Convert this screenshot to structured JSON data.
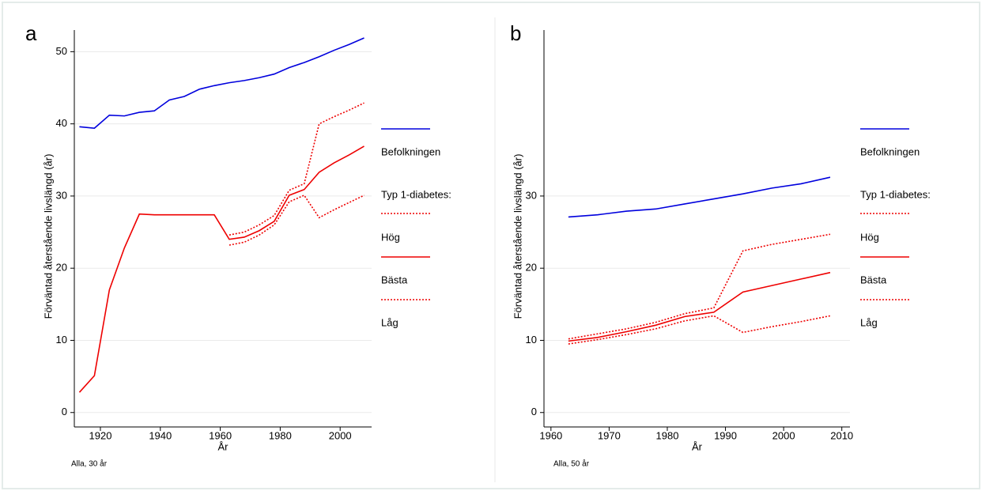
{
  "chart_data": [
    {
      "type": "line",
      "panel_label": "a",
      "xlabel": "År",
      "ylabel": "Förväntad återstående livslängd (år)",
      "note": "Alla, 30 år",
      "x": [
        1913,
        1918,
        1923,
        1928,
        1933,
        1938,
        1943,
        1948,
        1953,
        1958,
        1963,
        1968,
        1973,
        1978,
        1983,
        1988,
        1993,
        1998,
        2003,
        2008
      ],
      "xlim": [
        1911.3,
        2010.5
      ],
      "xticks": [
        1920,
        1940,
        1960,
        1980,
        2000
      ],
      "ylim": [
        -2,
        53
      ],
      "yticks": [
        0,
        10,
        20,
        30,
        40,
        50
      ],
      "grid": true,
      "legend_title": "Typ 1-diabetes:",
      "series": [
        {
          "name": "Befolkningen",
          "color": "#0000dd",
          "style": "solid",
          "values": [
            39.6,
            39.4,
            41.2,
            41.1,
            41.6,
            41.8,
            43.3,
            43.8,
            44.8,
            45.3,
            45.7,
            46.0,
            46.4,
            46.9,
            47.8,
            48.5,
            49.3,
            50.2,
            51.0,
            51.9
          ]
        },
        {
          "name": "Hög",
          "color": "#ee0000",
          "style": "dotted",
          "values": [
            null,
            null,
            null,
            null,
            null,
            null,
            null,
            null,
            null,
            null,
            24.6,
            25.0,
            26.0,
            27.3,
            30.8,
            31.7,
            40.0,
            41.0,
            41.9,
            42.9
          ]
        },
        {
          "name": "Bästa",
          "color": "#ee0000",
          "style": "solid",
          "values": [
            2.8,
            5.1,
            17.0,
            22.8,
            27.5,
            27.4,
            27.4,
            27.4,
            27.4,
            27.4,
            24.0,
            24.3,
            25.2,
            26.5,
            30.1,
            30.9,
            33.3,
            34.6,
            35.7,
            36.9
          ]
        },
        {
          "name": "Låg",
          "color": "#ee0000",
          "style": "dotted",
          "values": [
            null,
            null,
            null,
            null,
            null,
            null,
            null,
            null,
            null,
            null,
            23.2,
            23.6,
            24.6,
            26.0,
            29.2,
            30.1,
            27.0,
            28.1,
            29.1,
            30.1
          ]
        }
      ]
    },
    {
      "type": "line",
      "panel_label": "b",
      "xlabel": "År",
      "ylabel": "Förväntad återstående livslängd (år)",
      "note": "Alla, 50 år",
      "x": [
        1963,
        1968,
        1973,
        1978,
        1983,
        1988,
        1993,
        1998,
        2003,
        2008
      ],
      "xlim": [
        1958.8,
        2011.4
      ],
      "xticks": [
        1960,
        1970,
        1980,
        1990,
        2000,
        2010
      ],
      "ylim": [
        -2,
        53
      ],
      "yticks": [
        0,
        10,
        20,
        30
      ],
      "grid": true,
      "legend_title": "Typ 1-diabetes:",
      "series": [
        {
          "name": "Befolkningen",
          "color": "#0000dd",
          "style": "solid",
          "values": [
            27.1,
            27.4,
            27.9,
            28.2,
            28.9,
            29.6,
            30.3,
            31.1,
            31.7,
            32.6
          ]
        },
        {
          "name": "Hög",
          "color": "#ee0000",
          "style": "dotted",
          "values": [
            10.2,
            10.9,
            11.6,
            12.5,
            13.7,
            14.5,
            22.4,
            23.3,
            24.0,
            24.7
          ]
        },
        {
          "name": "Bästa",
          "color": "#ee0000",
          "style": "solid",
          "values": [
            9.9,
            10.4,
            11.2,
            12.1,
            13.3,
            13.9,
            16.7,
            17.6,
            18.5,
            19.4
          ]
        },
        {
          "name": "Låg",
          "color": "#ee0000",
          "style": "dotted",
          "values": [
            9.5,
            10.1,
            10.8,
            11.6,
            12.7,
            13.4,
            11.1,
            11.9,
            12.6,
            13.4
          ]
        }
      ]
    }
  ]
}
